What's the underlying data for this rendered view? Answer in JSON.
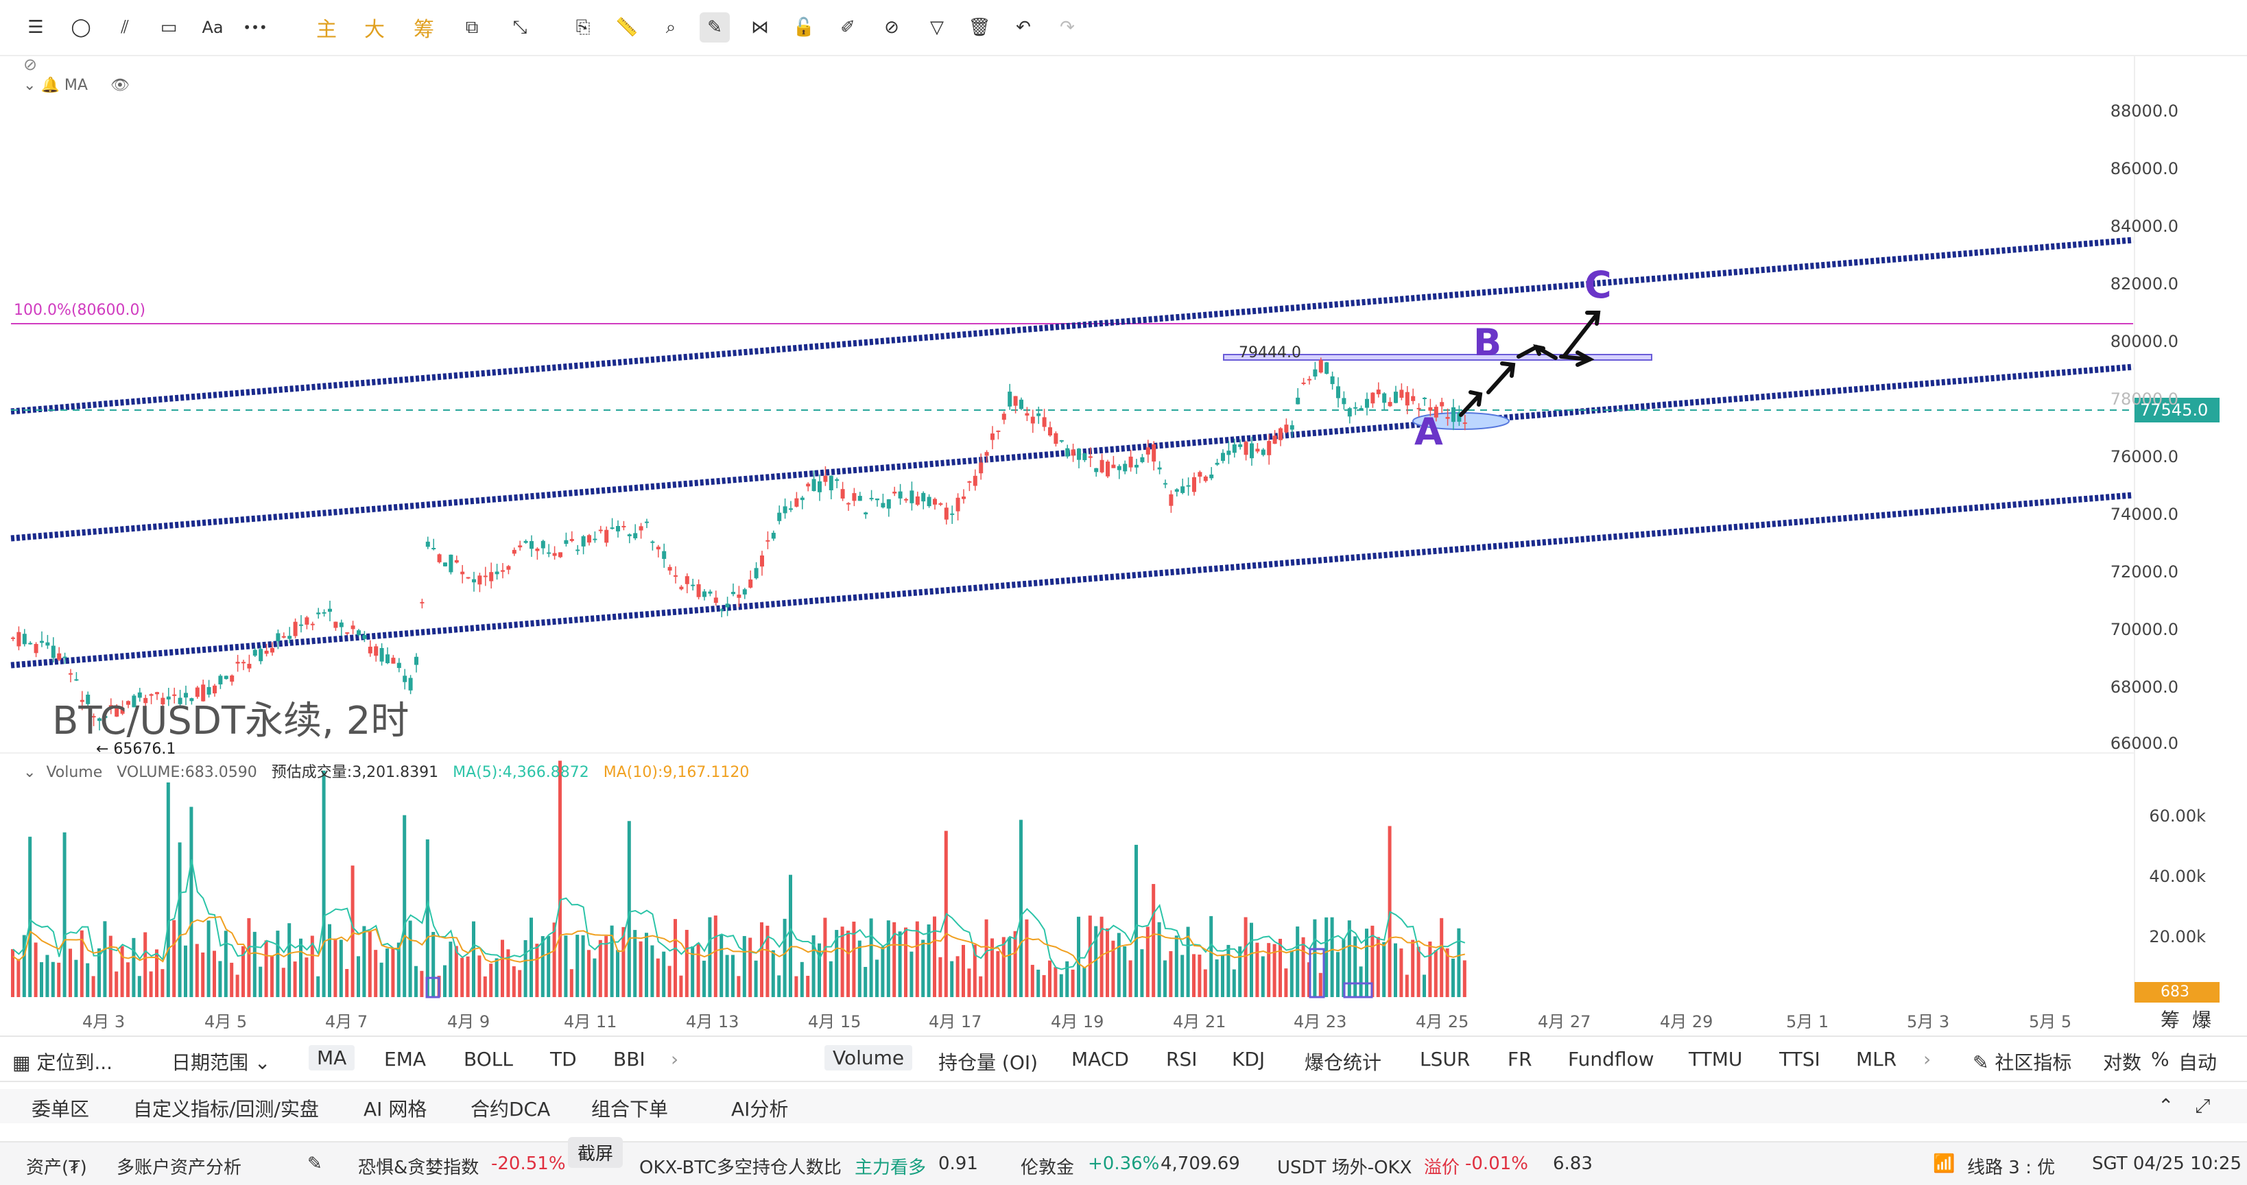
{
  "toolbar": {
    "icons": [
      "menu-icon",
      "ellipse-icon",
      "fib-icon",
      "rectangle-icon",
      "text-icon",
      "more-icon",
      "clone-icon",
      "ruler-icon",
      "zoom-icon",
      "pen-icon",
      "magnet-icon",
      "lock-icon",
      "edit-icon",
      "hide-icon",
      "filter-icon",
      "trash-icon",
      "undo-icon",
      "redo-icon"
    ],
    "text_label": "Aa",
    "more_label": "•••",
    "main_label": "主",
    "big_label": "大",
    "chip_label": "筹"
  },
  "legend": {
    "ma_label": "MA",
    "symbol_title": "BTC/USDT永续, 2时",
    "low_label": "← 65676.1",
    "fib_label": "100.0%(80600.0)",
    "level_label": "79444.0",
    "current_price": "77545.0",
    "waves": [
      "A",
      "B",
      "C"
    ]
  },
  "price_axis": [
    "88000.0",
    "86000.0",
    "84000.0",
    "82000.0",
    "80000.0",
    "78000.0",
    "76000.0",
    "74000.0",
    "72000.0",
    "70000.0",
    "68000.0",
    "66000.0"
  ],
  "volume_legend": {
    "name": "Volume",
    "volume": "VOLUME:683.0590",
    "est": "预估成交量:3,201.8391",
    "ma5": "MA(5):4,366.8872",
    "ma10": "MA(10):9,167.1120"
  },
  "volume_axis": [
    "60.00k",
    "40.00k",
    "20.00k"
  ],
  "volume_current": "683",
  "date_axis": [
    "4月 3",
    "4月 5",
    "4月 7",
    "4月 9",
    "4月 11",
    "4月 13",
    "4月 15",
    "4月 17",
    "4月 19",
    "4月 21",
    "4月 23",
    "4月 25",
    "4月 27",
    "4月 29",
    "5月 1",
    "5月 3",
    "5月 5"
  ],
  "axis_corner": [
    "筹",
    "爆"
  ],
  "indicator_bar": {
    "locate": "定位到...",
    "range": "日期范围",
    "main_items": [
      "MA",
      "EMA",
      "BOLL",
      "TD",
      "BBI"
    ],
    "sub_items": [
      "Volume",
      "持仓量 (OI)",
      "MACD",
      "RSI",
      "KDJ",
      "爆仓统计",
      "LSUR",
      "FR",
      "Fundflow",
      "TTMU",
      "TTSI",
      "MLR"
    ],
    "community": "社区指标",
    "log": "对数",
    "pct": "%",
    "auto": "自动"
  },
  "bottom_tabs": [
    "委单区",
    "自定义指标/回测/实盘",
    "AI 网格",
    "合约DCA",
    "组合下单",
    "AI分析"
  ],
  "status_bar": {
    "assets": "资产(₮)",
    "multi": "多账户资产分析",
    "fear_label": "恐惧&贪婪指数",
    "fear_value": "-20.51%",
    "screenshot": "截屏",
    "ratio_label": "OKX-BTC多空持仓人数比",
    "ratio_state": "主力看多",
    "ratio_value": "0.91",
    "gold_label": "伦敦金",
    "gold_change": "+0.36%",
    "gold_value": "4,709.69",
    "usdt_label": "USDT 场外-OKX",
    "premium_label": "溢价",
    "premium_value": "-0.01%",
    "usdt_value": "6.83",
    "line_label": "线路 3 : 优",
    "time": "SGT 04/25 10:25"
  },
  "colors": {
    "up": "#26a69a",
    "down": "#ef5350",
    "channel": "#1a2a8c",
    "wave": "#6a35c8",
    "fib": "#d03cc0",
    "ma5": "#2cc4a8",
    "ma10": "#f0a020"
  }
}
